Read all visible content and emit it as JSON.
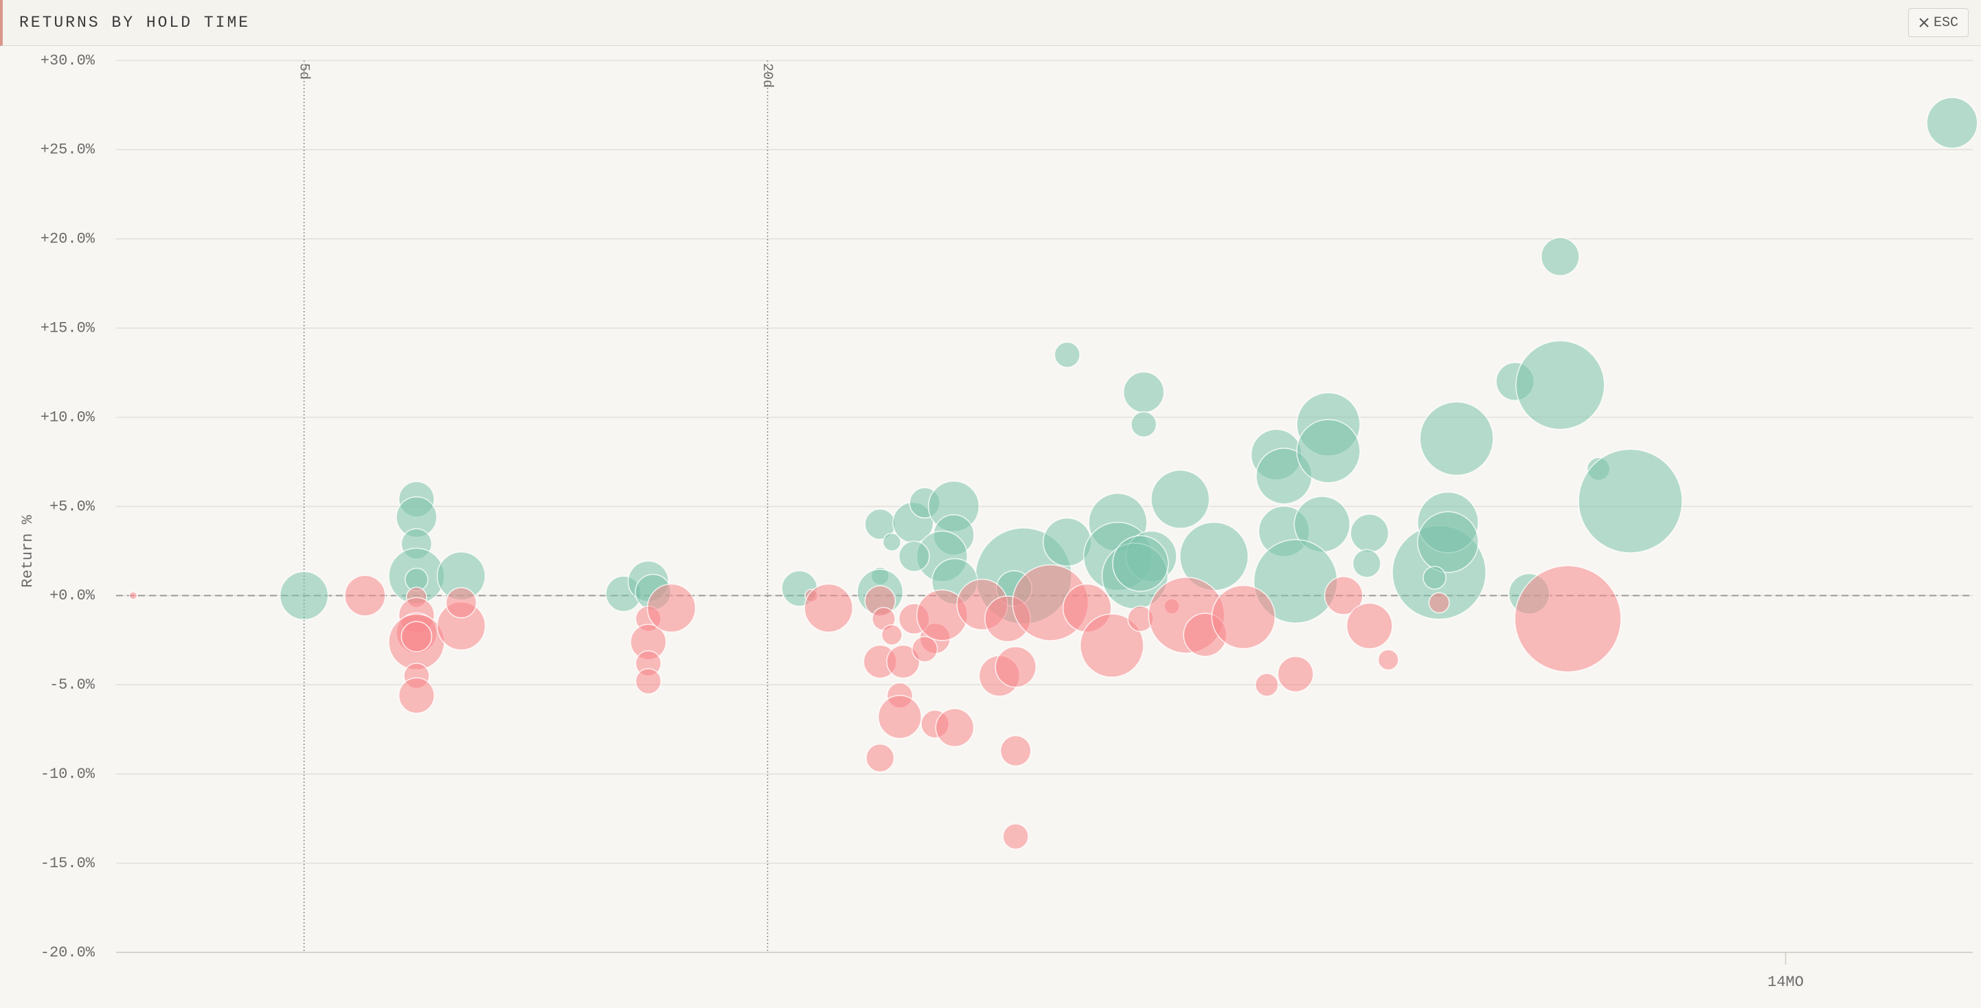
{
  "header": {
    "title": "RETURNS BY HOLD TIME",
    "close_button": "ESC"
  },
  "chart_data": {
    "type": "bubble",
    "y_label": "Return %",
    "xscale": "log",
    "xlim": [
      2.85,
      735
    ],
    "ylim": [
      -20,
      30
    ],
    "yticks": [
      {
        "value": 30,
        "label": "+30.0%"
      },
      {
        "value": 25,
        "label": "+25.0%"
      },
      {
        "value": 20,
        "label": "+20.0%"
      },
      {
        "value": 15,
        "label": "+15.0%"
      },
      {
        "value": 10,
        "label": "+10.0%"
      },
      {
        "value": 5,
        "label": "+5.0%"
      },
      {
        "value": 0,
        "label": "+0.0%"
      },
      {
        "value": -5,
        "label": "-5.0%"
      },
      {
        "value": -10,
        "label": "-10.0%"
      },
      {
        "value": -15,
        "label": "-15.0%"
      },
      {
        "value": -20,
        "label": "-20.0%"
      }
    ],
    "reference_lines": [
      {
        "value": 5,
        "label": "5d"
      },
      {
        "value": 20,
        "label": "20d"
      }
    ],
    "xticks": [
      {
        "value": 420,
        "label": "14MO"
      }
    ],
    "zero_line": true,
    "grid": true,
    "series": [
      {
        "color": "#7cc2ab",
        "x": [
          5,
          7,
          7,
          7,
          7,
          7,
          8,
          13,
          14,
          14.2,
          22,
          28,
          29,
          30.9,
          32,
          34.9,
          34.9,
          33.7,
          31,
          28,
          28,
          43,
          49,
          49,
          57,
          57,
          61.6,
          61.6,
          68.7,
          63,
          60,
          76,
          91.6,
          93.7,
          93.7,
          105,
          107,
          107,
          97,
          121,
          120,
          149,
          153,
          153,
          157,
          147,
          187,
          214,
          214,
          240,
          264,
          195,
          691,
          41.8,
          35,
          61
        ],
        "values": [
          0,
          5.4,
          4.4,
          2.9,
          1.1,
          0.9,
          1.1,
          0.1,
          0.8,
          0.2,
          0.4,
          4.0,
          3.0,
          4.1,
          5.2,
          5.0,
          3.4,
          2.2,
          2.2,
          1.1,
          0.2,
          1.1,
          13.5,
          3.0,
          4.1,
          2.2,
          11.4,
          9.6,
          5.4,
          2.2,
          1.1,
          2.2,
          7.9,
          6.7,
          3.6,
          4.0,
          9.6,
          8.1,
          0.8,
          3.5,
          1.8,
          1.3,
          4.1,
          3.0,
          8.8,
          1.0,
          12.0,
          11.8,
          19.0,
          7.1,
          5.3,
          0.1,
          26.5,
          0.4,
          0.8,
          1.8
        ],
        "sizes": [
          361,
          196,
          256,
          144,
          484,
          81,
          361,
          196,
          256,
          196,
          196,
          144,
          49,
          256,
          144,
          400,
          256,
          400,
          144,
          49,
          324,
          1444,
          100,
          361,
          529,
          729,
          256,
          100,
          529,
          400,
          676,
          729,
          400,
          484,
          400,
          484,
          625,
          625,
          1089,
          225,
          121,
          1369,
          576,
          576,
          841,
          81,
          225,
          1225,
          225,
          81,
          1681,
          256,
          400,
          196,
          324,
          484
        ]
      },
      {
        "color": "#f7868a",
        "x": [
          3,
          6,
          7,
          7,
          7,
          7,
          7,
          7,
          7,
          8,
          8,
          14,
          14,
          14,
          14,
          15,
          22.8,
          24,
          28,
          28.3,
          29,
          28,
          30,
          29.7,
          29.7,
          28,
          33,
          35,
          33,
          32,
          31,
          33.7,
          38,
          41,
          40,
          42,
          42,
          42,
          46.6,
          52,
          56,
          61,
          67,
          70,
          74,
          83,
          89,
          97,
          112,
          121,
          128,
          149,
          219
        ],
        "values": [
          0,
          0,
          -0.1,
          -1.1,
          -2.1,
          -2.6,
          -2.3,
          -4.5,
          -5.6,
          -1.7,
          -0.4,
          -1.3,
          -2.6,
          -3.8,
          -4.8,
          -0.7,
          0,
          -0.7,
          -0.3,
          -1.3,
          -2.2,
          -3.7,
          -3.7,
          -5.6,
          -6.8,
          -9.1,
          -7.2,
          -7.4,
          -2.4,
          -3.0,
          -1.3,
          -1.1,
          -0.5,
          -1.3,
          -4.5,
          -4.0,
          -8.7,
          -13.5,
          -0.4,
          -0.7,
          -2.8,
          -1.3,
          -0.6,
          -1.1,
          -2.2,
          -1.2,
          -5.0,
          -4.4,
          0,
          -1.7,
          -3.6,
          -0.4,
          -1.3
        ],
        "sizes": [
          9,
          256,
          64,
          196,
          256,
          484,
          144,
          100,
          196,
          361,
          144,
          100,
          196,
          100,
          100,
          361,
          25,
          361,
          144,
          81,
          64,
          169,
          169,
          100,
          289,
          121,
          121,
          225,
          144,
          100,
          144,
          400,
          400,
          324,
          256,
          256,
          144,
          100,
          900,
          361,
          625,
          100,
          36,
          900,
          289,
          625,
          81,
          196,
          225,
          324,
          64,
          64,
          1764
        ]
      }
    ]
  }
}
